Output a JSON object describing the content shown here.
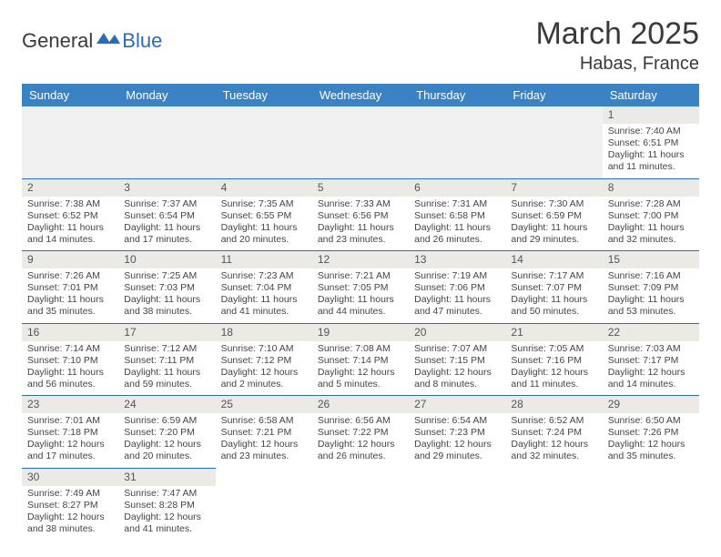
{
  "logo": {
    "part1": "General",
    "part2": "Blue"
  },
  "title": {
    "month": "March 2025",
    "location": "Habas, France"
  },
  "colors": {
    "header_bg": "#3b82c4",
    "header_text": "#ffffff",
    "border": "#2a6db8",
    "daynum_bg": "#eceae7",
    "logo_blue": "#2a6db8"
  },
  "weekdays": [
    "Sunday",
    "Monday",
    "Tuesday",
    "Wednesday",
    "Thursday",
    "Friday",
    "Saturday"
  ],
  "weeks": [
    [
      null,
      null,
      null,
      null,
      null,
      null,
      {
        "n": "1",
        "sr": "Sunrise: 7:40 AM",
        "ss": "Sunset: 6:51 PM",
        "d1": "Daylight: 11 hours",
        "d2": "and 11 minutes."
      }
    ],
    [
      {
        "n": "2",
        "sr": "Sunrise: 7:38 AM",
        "ss": "Sunset: 6:52 PM",
        "d1": "Daylight: 11 hours",
        "d2": "and 14 minutes."
      },
      {
        "n": "3",
        "sr": "Sunrise: 7:37 AM",
        "ss": "Sunset: 6:54 PM",
        "d1": "Daylight: 11 hours",
        "d2": "and 17 minutes."
      },
      {
        "n": "4",
        "sr": "Sunrise: 7:35 AM",
        "ss": "Sunset: 6:55 PM",
        "d1": "Daylight: 11 hours",
        "d2": "and 20 minutes."
      },
      {
        "n": "5",
        "sr": "Sunrise: 7:33 AM",
        "ss": "Sunset: 6:56 PM",
        "d1": "Daylight: 11 hours",
        "d2": "and 23 minutes."
      },
      {
        "n": "6",
        "sr": "Sunrise: 7:31 AM",
        "ss": "Sunset: 6:58 PM",
        "d1": "Daylight: 11 hours",
        "d2": "and 26 minutes."
      },
      {
        "n": "7",
        "sr": "Sunrise: 7:30 AM",
        "ss": "Sunset: 6:59 PM",
        "d1": "Daylight: 11 hours",
        "d2": "and 29 minutes."
      },
      {
        "n": "8",
        "sr": "Sunrise: 7:28 AM",
        "ss": "Sunset: 7:00 PM",
        "d1": "Daylight: 11 hours",
        "d2": "and 32 minutes."
      }
    ],
    [
      {
        "n": "9",
        "sr": "Sunrise: 7:26 AM",
        "ss": "Sunset: 7:01 PM",
        "d1": "Daylight: 11 hours",
        "d2": "and 35 minutes."
      },
      {
        "n": "10",
        "sr": "Sunrise: 7:25 AM",
        "ss": "Sunset: 7:03 PM",
        "d1": "Daylight: 11 hours",
        "d2": "and 38 minutes."
      },
      {
        "n": "11",
        "sr": "Sunrise: 7:23 AM",
        "ss": "Sunset: 7:04 PM",
        "d1": "Daylight: 11 hours",
        "d2": "and 41 minutes."
      },
      {
        "n": "12",
        "sr": "Sunrise: 7:21 AM",
        "ss": "Sunset: 7:05 PM",
        "d1": "Daylight: 11 hours",
        "d2": "and 44 minutes."
      },
      {
        "n": "13",
        "sr": "Sunrise: 7:19 AM",
        "ss": "Sunset: 7:06 PM",
        "d1": "Daylight: 11 hours",
        "d2": "and 47 minutes."
      },
      {
        "n": "14",
        "sr": "Sunrise: 7:17 AM",
        "ss": "Sunset: 7:07 PM",
        "d1": "Daylight: 11 hours",
        "d2": "and 50 minutes."
      },
      {
        "n": "15",
        "sr": "Sunrise: 7:16 AM",
        "ss": "Sunset: 7:09 PM",
        "d1": "Daylight: 11 hours",
        "d2": "and 53 minutes."
      }
    ],
    [
      {
        "n": "16",
        "sr": "Sunrise: 7:14 AM",
        "ss": "Sunset: 7:10 PM",
        "d1": "Daylight: 11 hours",
        "d2": "and 56 minutes."
      },
      {
        "n": "17",
        "sr": "Sunrise: 7:12 AM",
        "ss": "Sunset: 7:11 PM",
        "d1": "Daylight: 11 hours",
        "d2": "and 59 minutes."
      },
      {
        "n": "18",
        "sr": "Sunrise: 7:10 AM",
        "ss": "Sunset: 7:12 PM",
        "d1": "Daylight: 12 hours",
        "d2": "and 2 minutes."
      },
      {
        "n": "19",
        "sr": "Sunrise: 7:08 AM",
        "ss": "Sunset: 7:14 PM",
        "d1": "Daylight: 12 hours",
        "d2": "and 5 minutes."
      },
      {
        "n": "20",
        "sr": "Sunrise: 7:07 AM",
        "ss": "Sunset: 7:15 PM",
        "d1": "Daylight: 12 hours",
        "d2": "and 8 minutes."
      },
      {
        "n": "21",
        "sr": "Sunrise: 7:05 AM",
        "ss": "Sunset: 7:16 PM",
        "d1": "Daylight: 12 hours",
        "d2": "and 11 minutes."
      },
      {
        "n": "22",
        "sr": "Sunrise: 7:03 AM",
        "ss": "Sunset: 7:17 PM",
        "d1": "Daylight: 12 hours",
        "d2": "and 14 minutes."
      }
    ],
    [
      {
        "n": "23",
        "sr": "Sunrise: 7:01 AM",
        "ss": "Sunset: 7:18 PM",
        "d1": "Daylight: 12 hours",
        "d2": "and 17 minutes."
      },
      {
        "n": "24",
        "sr": "Sunrise: 6:59 AM",
        "ss": "Sunset: 7:20 PM",
        "d1": "Daylight: 12 hours",
        "d2": "and 20 minutes."
      },
      {
        "n": "25",
        "sr": "Sunrise: 6:58 AM",
        "ss": "Sunset: 7:21 PM",
        "d1": "Daylight: 12 hours",
        "d2": "and 23 minutes."
      },
      {
        "n": "26",
        "sr": "Sunrise: 6:56 AM",
        "ss": "Sunset: 7:22 PM",
        "d1": "Daylight: 12 hours",
        "d2": "and 26 minutes."
      },
      {
        "n": "27",
        "sr": "Sunrise: 6:54 AM",
        "ss": "Sunset: 7:23 PM",
        "d1": "Daylight: 12 hours",
        "d2": "and 29 minutes."
      },
      {
        "n": "28",
        "sr": "Sunrise: 6:52 AM",
        "ss": "Sunset: 7:24 PM",
        "d1": "Daylight: 12 hours",
        "d2": "and 32 minutes."
      },
      {
        "n": "29",
        "sr": "Sunrise: 6:50 AM",
        "ss": "Sunset: 7:26 PM",
        "d1": "Daylight: 12 hours",
        "d2": "and 35 minutes."
      }
    ],
    [
      {
        "n": "30",
        "sr": "Sunrise: 7:49 AM",
        "ss": "Sunset: 8:27 PM",
        "d1": "Daylight: 12 hours",
        "d2": "and 38 minutes."
      },
      {
        "n": "31",
        "sr": "Sunrise: 7:47 AM",
        "ss": "Sunset: 8:28 PM",
        "d1": "Daylight: 12 hours",
        "d2": "and 41 minutes."
      },
      null,
      null,
      null,
      null,
      null
    ]
  ]
}
